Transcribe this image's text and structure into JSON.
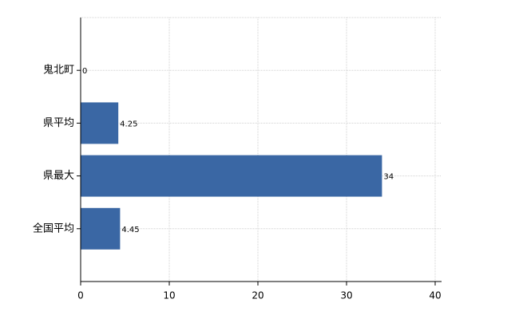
{
  "chart_data": {
    "type": "bar",
    "orientation": "horizontal",
    "categories": [
      "鬼北町",
      "県平均",
      "県最大",
      "全国平均"
    ],
    "values": [
      0,
      4.25,
      34,
      4.45
    ],
    "color": "#3a67a4",
    "xlim": [
      0,
      40
    ],
    "xticks": [
      0,
      10,
      20,
      30,
      40
    ],
    "grid": true
  }
}
